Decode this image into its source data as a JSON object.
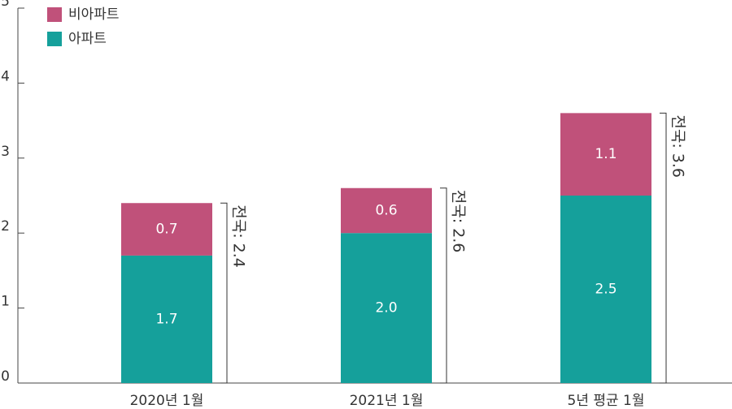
{
  "chart_data": {
    "type": "stacked_bar",
    "categories": [
      "2020년 1월",
      "2021년 1월",
      "5년 평균 1월"
    ],
    "series": [
      {
        "name": "아파트",
        "color": "#15a09b",
        "values": [
          1.7,
          2.0,
          2.5
        ],
        "value_labels": [
          "1.7",
          "2.0",
          "2.5"
        ]
      },
      {
        "name": "비아파트",
        "color": "#c0517a",
        "values": [
          0.7,
          0.6,
          1.1
        ],
        "value_labels": [
          "0.7",
          "0.6",
          "1.1"
        ]
      }
    ],
    "annotations": [
      "전국: 2.4",
      "전국: 2.6",
      "전국: 3.6"
    ],
    "ylim": [
      0,
      5
    ],
    "yticks": [
      0,
      1,
      2,
      3,
      4,
      5
    ]
  }
}
